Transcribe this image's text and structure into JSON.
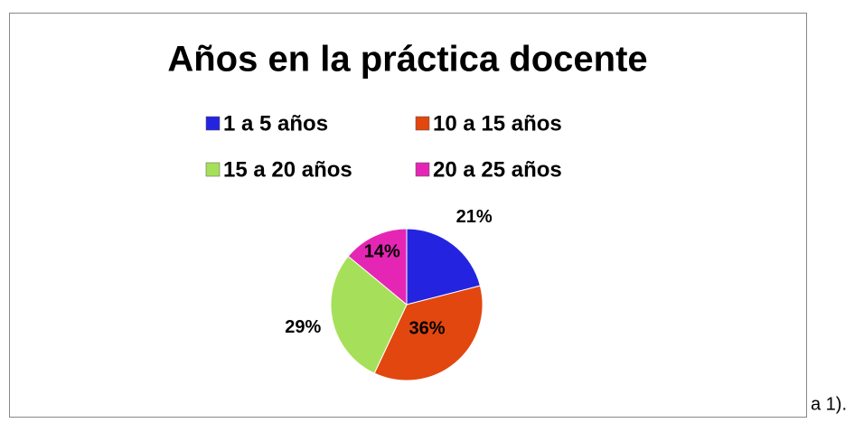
{
  "chart_data": {
    "type": "pie",
    "title": "Años en la práctica docente",
    "categories": [
      "1 a 5 años",
      "10 a 15 años",
      "15 a 20 años",
      "20 a 25 años"
    ],
    "values": [
      21,
      36,
      29,
      14
    ],
    "value_labels": [
      "21%",
      "36%",
      "29%",
      "14%"
    ],
    "colors": [
      "#2424e0",
      "#e2470f",
      "#a6e05a",
      "#e526b4"
    ],
    "legend": "top"
  },
  "text_after": "a 1)."
}
